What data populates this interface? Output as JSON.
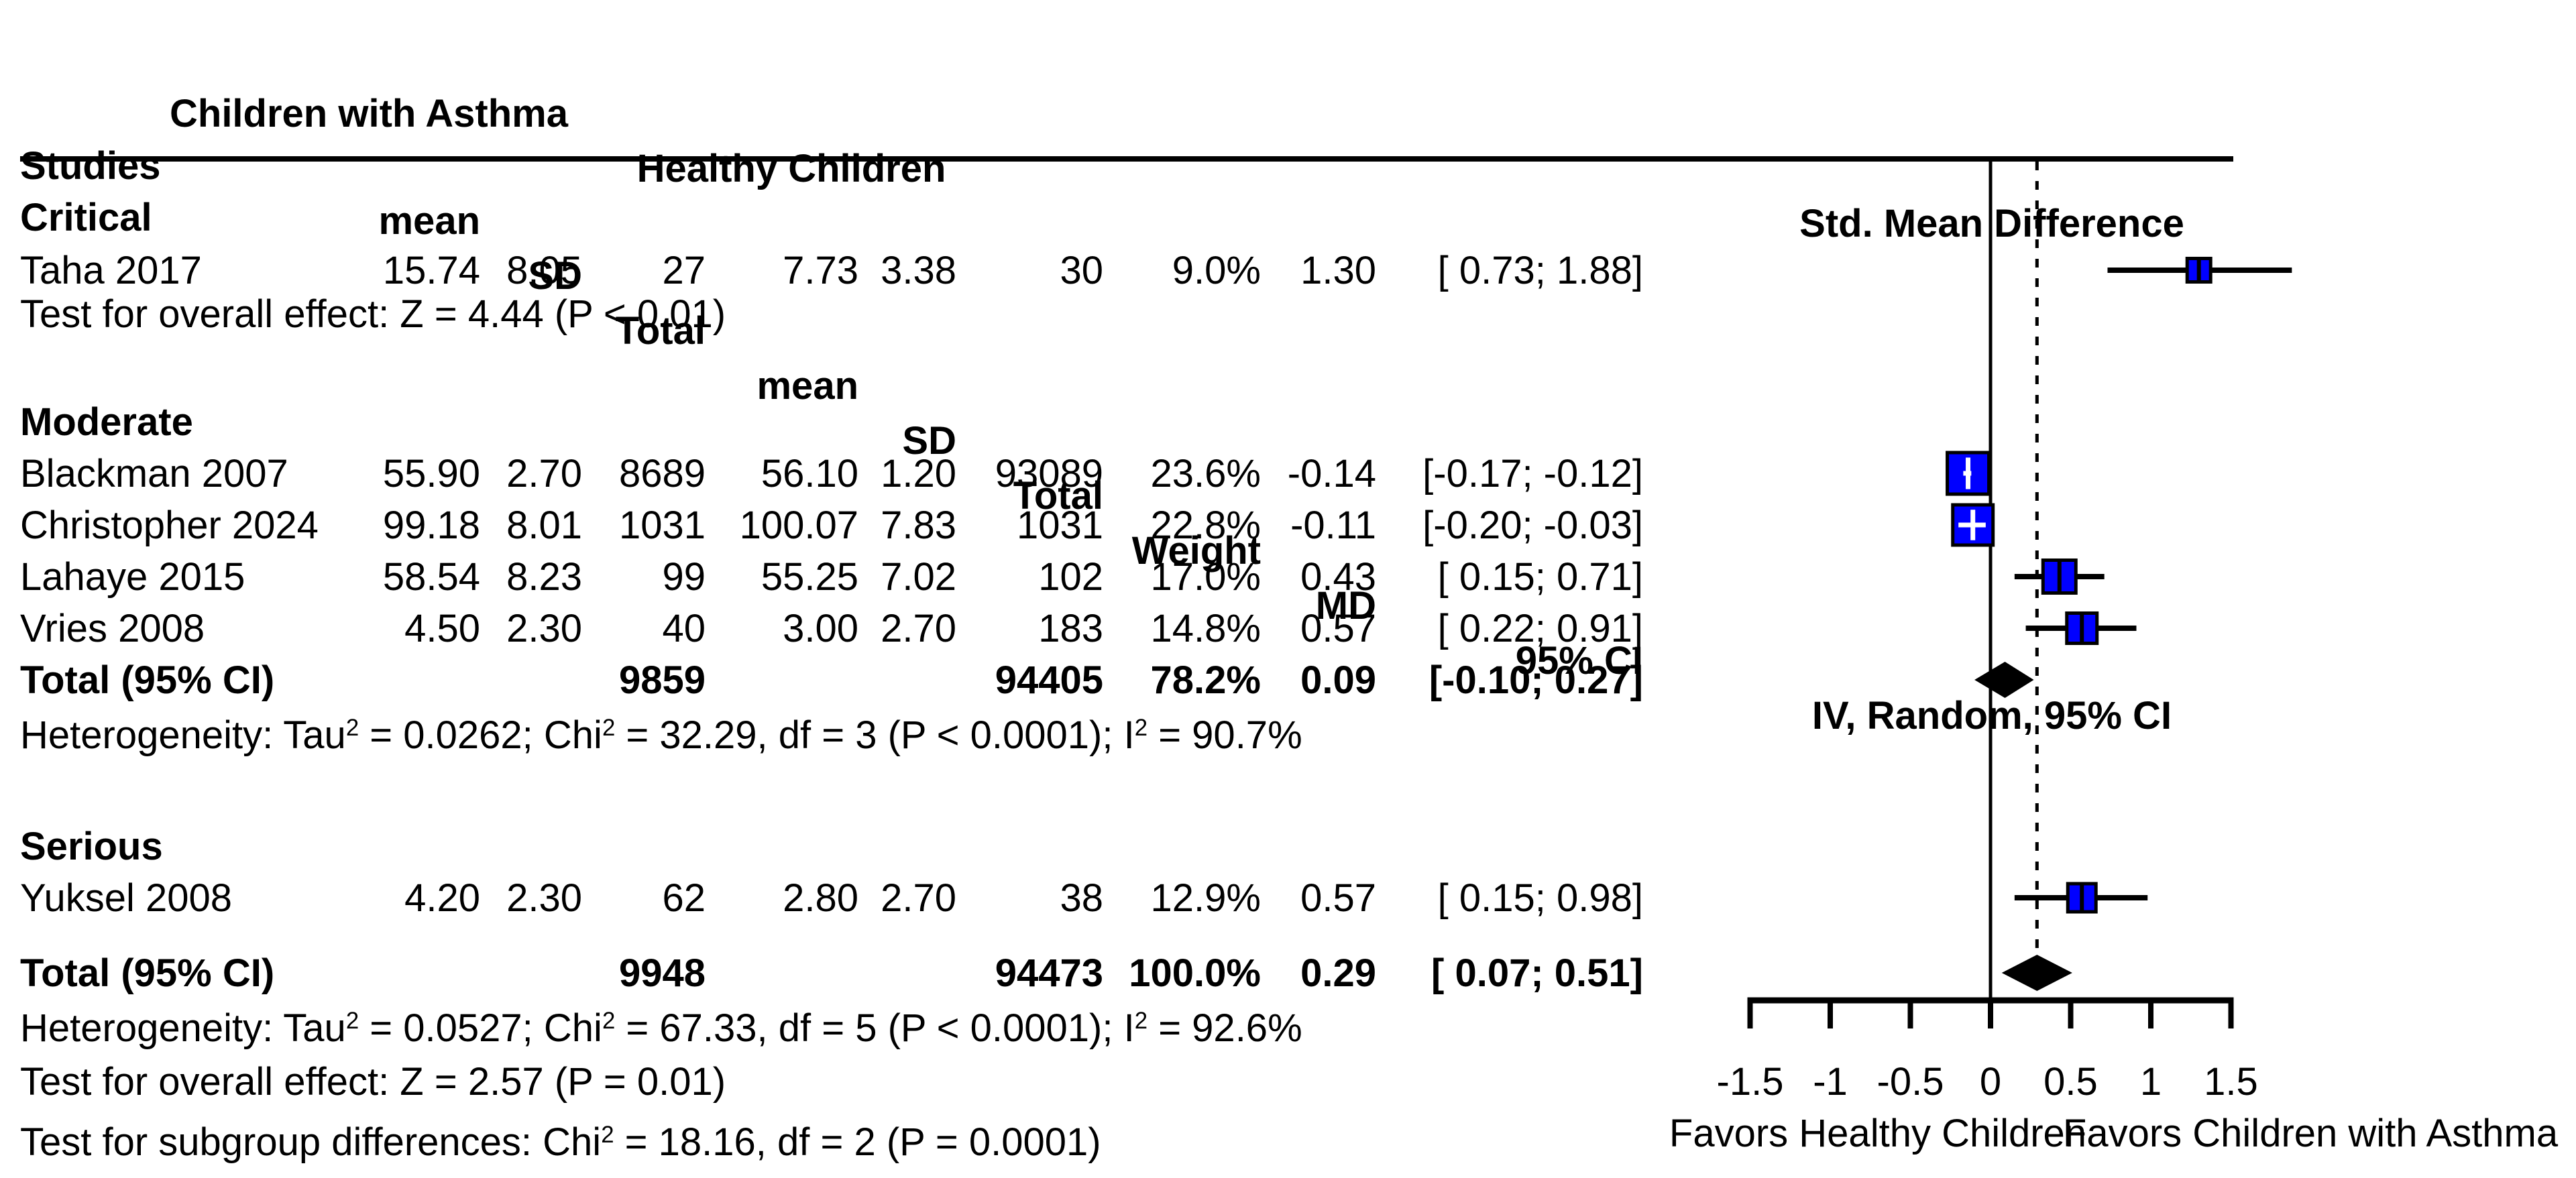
{
  "header": {
    "group_experimental": "Children with Asthma",
    "group_control": "Healthy Children",
    "col_studies": "Studies",
    "col_mean_1": "mean",
    "col_sd_1": "SD",
    "col_total_1": "Total",
    "col_mean_2": "mean",
    "col_sd_2": "SD",
    "col_total_2": "Total",
    "col_weight": "Weight",
    "col_md": "MD",
    "col_ci": "95% CI",
    "plot_title": "Std. Mean Difference",
    "plot_subtitle": "IV, Random, 95% CI"
  },
  "colors": {
    "marker_fill": "#0000ff",
    "marker_border": "#000000",
    "diamond_fill": "#000000",
    "line_color": "#000000",
    "background": "#ffffff"
  },
  "chart_data": {
    "type": "forest",
    "effect_measure": "Std. Mean Difference",
    "model": "IV, Random, 95% CI",
    "xlim": [
      -1.5,
      1.5
    ],
    "x_ticks": [
      -1.5,
      -1,
      -0.5,
      0,
      0.5,
      1,
      1.5
    ],
    "x_tick_labels": [
      "-1.5",
      "-1",
      "-0.5",
      "0",
      "0.5",
      "1",
      "1.5"
    ],
    "reference_line": 0,
    "overall_effect_line": 0.29,
    "favors_left": "Favors Healthy Children",
    "favors_right": "Favors Children with Asthma",
    "groups": [
      {
        "label": "Critical",
        "studies": [
          {
            "label": "Taha 2017",
            "mean1": "15.74",
            "sd1": "8.05",
            "n1": "27",
            "mean2": "7.73",
            "sd2": "3.38",
            "n2": "30",
            "weight": "9.0%",
            "md": "1.30",
            "ci_text": "[ 0.73; 1.88]",
            "est": 1.3,
            "lo": 0.73,
            "hi": 1.88,
            "weight_pct": 9.0
          }
        ],
        "subtotal": null,
        "footnotes": [
          "Test for overall effect: Z = 4.44 (P < 0.01)"
        ]
      },
      {
        "label": "Moderate",
        "studies": [
          {
            "label": "Blackman 2007",
            "mean1": "55.90",
            "sd1": "2.70",
            "n1": "8689",
            "mean2": "56.10",
            "sd2": "1.20",
            "n2": "93089",
            "weight": "23.6%",
            "md": "-0.14",
            "ci_text": "[-0.17; -0.12]",
            "est": -0.14,
            "lo": -0.17,
            "hi": -0.12,
            "weight_pct": 23.6
          },
          {
            "label": "Christopher 2024",
            "mean1": "99.18",
            "sd1": "8.01",
            "n1": "1031",
            "mean2": "100.07",
            "sd2": "7.83",
            "n2": "1031",
            "weight": "22.8%",
            "md": "-0.11",
            "ci_text": "[-0.20; -0.03]",
            "est": -0.11,
            "lo": -0.2,
            "hi": -0.03,
            "weight_pct": 22.8
          },
          {
            "label": "Lahaye 2015",
            "mean1": "58.54",
            "sd1": "8.23",
            "n1": "99",
            "mean2": "55.25",
            "sd2": "7.02",
            "n2": "102",
            "weight": "17.0%",
            "md": "0.43",
            "ci_text": "[ 0.15; 0.71]",
            "est": 0.43,
            "lo": 0.15,
            "hi": 0.71,
            "weight_pct": 17.0
          },
          {
            "label": "Vries 2008",
            "mean1": "4.50",
            "sd1": "2.30",
            "n1": "40",
            "mean2": "3.00",
            "sd2": "2.70",
            "n2": "183",
            "weight": "14.8%",
            "md": "0.57",
            "ci_text": "[ 0.22; 0.91]",
            "est": 0.57,
            "lo": 0.22,
            "hi": 0.91,
            "weight_pct": 14.8
          }
        ],
        "subtotal": {
          "label": "Total (95% CI)",
          "n1": "9859",
          "n2": "94405",
          "weight": "78.2%",
          "md": "0.09",
          "ci_text": "[-0.10; 0.27]",
          "est": 0.09,
          "lo": -0.1,
          "hi": 0.27
        },
        "footnotes": [
          "Heterogeneity: Tau² = 0.0262; Chi² = 32.29, df = 3 (P < 0.0001); I² = 90.7%"
        ]
      },
      {
        "label": "Serious",
        "studies": [
          {
            "label": "Yuksel 2008",
            "mean1": "4.20",
            "sd1": "2.30",
            "n1": "62",
            "mean2": "2.80",
            "sd2": "2.70",
            "n2": "38",
            "weight": "12.9%",
            "md": "0.57",
            "ci_text": "[ 0.15; 0.98]",
            "est": 0.57,
            "lo": 0.15,
            "hi": 0.98,
            "weight_pct": 12.9
          }
        ],
        "subtotal": null,
        "footnotes": []
      }
    ],
    "overall": {
      "label": "Total (95% CI)",
      "n1": "9948",
      "n2": "94473",
      "weight": "100.0%",
      "md": "0.29",
      "ci_text": "[ 0.07; 0.51]",
      "est": 0.29,
      "lo": 0.07,
      "hi": 0.51
    },
    "overall_footnotes": [
      "Heterogeneity: Tau² = 0.0527; Chi² = 67.33, df = 5 (P < 0.0001); I² = 92.6%",
      "Test for overall effect: Z = 2.57 (P = 0.01)",
      "Test for subgroup differences: Chi² = 18.16, df = 2 (P = 0.0001)"
    ]
  }
}
